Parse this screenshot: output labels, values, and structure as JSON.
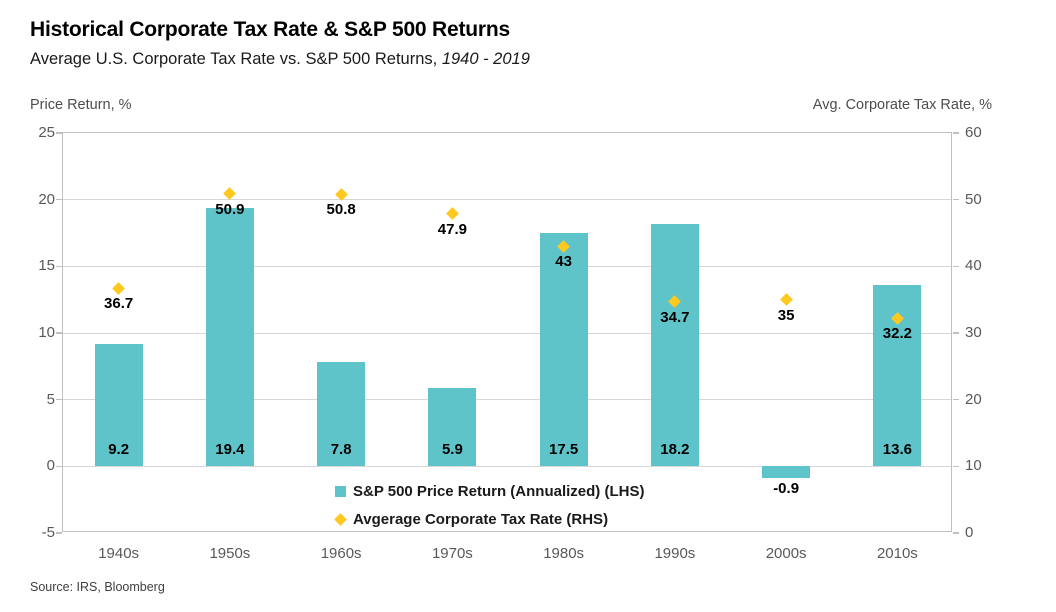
{
  "header": {
    "title": "Historical Corporate Tax Rate & S&P 500 Returns",
    "subtitle_text": "Average U.S. Corporate Tax Rate vs. S&P 500 Returns, ",
    "subtitle_range": "1940 - 2019"
  },
  "source": "Source: IRS, Bloomberg",
  "chart_data": {
    "type": "bar",
    "subtype": "dual-axis combo (bar + scatter markers)",
    "title": "Historical Corporate Tax Rate & S&P 500 Returns",
    "subtitle": "Average U.S. Corporate Tax Rate vs. S&P 500 Returns, 1940 - 2019",
    "categories": [
      "1940s",
      "1950s",
      "1960s",
      "1970s",
      "1980s",
      "1990s",
      "2000s",
      "2010s"
    ],
    "series": [
      {
        "name": "S&P 500 Price Return (Annualized) (LHS)",
        "type": "bar",
        "axis": "left",
        "color": "#5fc4c9",
        "values": [
          9.2,
          19.4,
          7.8,
          5.9,
          17.5,
          18.2,
          -0.9,
          13.6
        ]
      },
      {
        "name": "Avgerage Corporate Tax Rate (RHS)",
        "type": "scatter",
        "axis": "right",
        "marker": "diamond",
        "color": "#ffc81e",
        "values": [
          36.7,
          50.9,
          50.8,
          47.9,
          43,
          34.7,
          35,
          32.2
        ]
      }
    ],
    "left_axis": {
      "title": "Price Return, %",
      "ticks": [
        25,
        20,
        15,
        10,
        5,
        0,
        -5
      ],
      "min": -5,
      "max": 25
    },
    "right_axis": {
      "title": "Avg. Corporate Tax Rate, %",
      "ticks": [
        60,
        50,
        40,
        30,
        20,
        10,
        0
      ],
      "min": 0,
      "max": 60
    },
    "grid": true,
    "legend_position": "bottom-center-inside",
    "data_labels": true
  }
}
